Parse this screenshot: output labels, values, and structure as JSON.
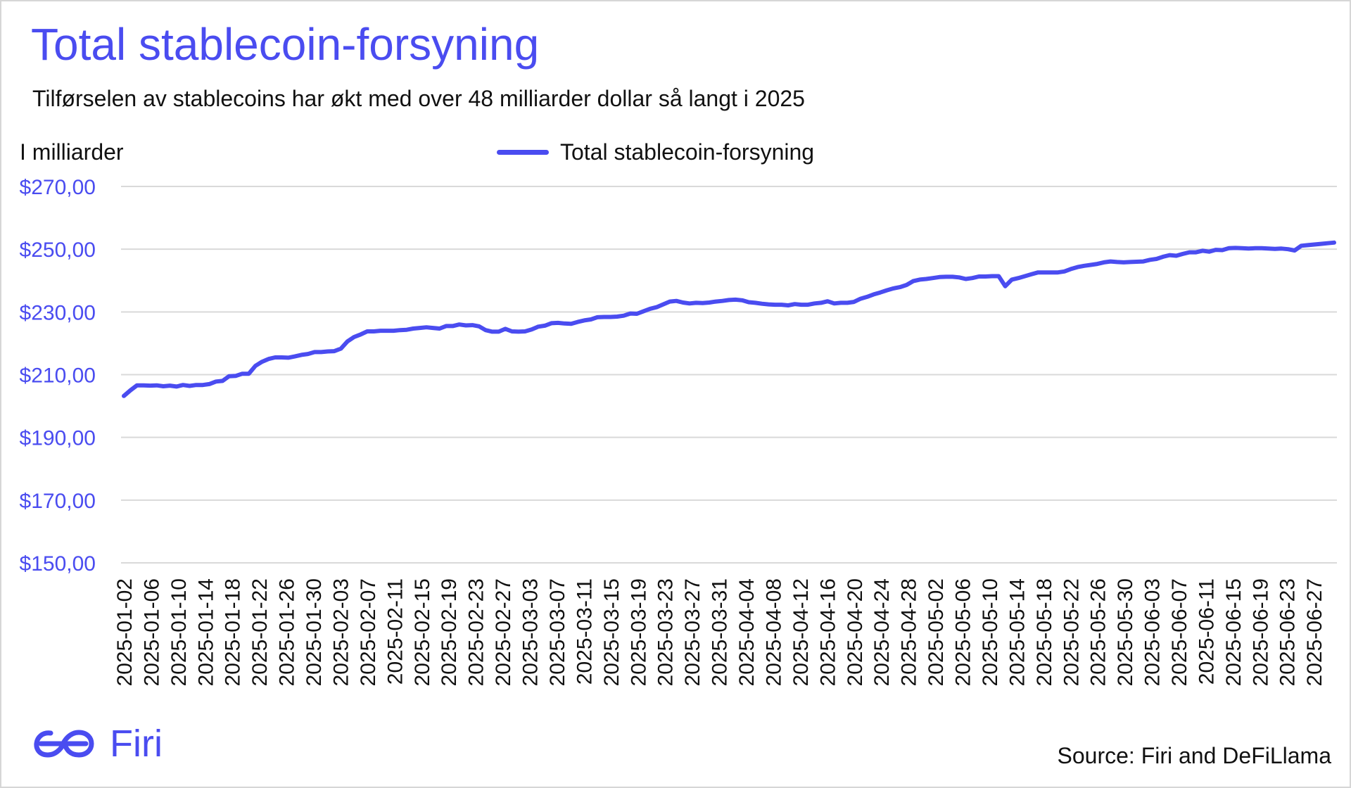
{
  "chart_data": {
    "type": "line",
    "title": "Total stablecoin-forsyning",
    "subtitle": "Tilførselen av stablecoins har økt med over 48 milliarder dollar så langt i 2025",
    "ylabel": "I milliarder",
    "xlabel": "",
    "ylim": [
      150,
      270
    ],
    "yticks": [
      150,
      170,
      190,
      210,
      230,
      250,
      270
    ],
    "ytick_labels": [
      "$150,00",
      "$170,00",
      "$190,00",
      "$210,00",
      "$230,00",
      "$250,00",
      "$270,00"
    ],
    "grid": "horizontal",
    "legend_position": "top-center",
    "color": "#4a4cf0",
    "x_start": "2025-01-02",
    "x_end": "2025-06-30",
    "xtick_labels": [
      "2025-01-02",
      "2025-01-06",
      "2025-01-10",
      "2025-01-14",
      "2025-01-18",
      "2025-01-22",
      "2025-01-26",
      "2025-01-30",
      "2025-02-03",
      "2025-02-07",
      "2025-02-11",
      "2025-02-15",
      "2025-02-19",
      "2025-02-23",
      "2025-02-27",
      "2025-03-03",
      "2025-03-07",
      "2025-03-11",
      "2025-03-15",
      "2025-03-19",
      "2025-03-23",
      "2025-03-27",
      "2025-03-31",
      "2025-04-04",
      "2025-04-08",
      "2025-04-12",
      "2025-04-16",
      "2025-04-20",
      "2025-04-24",
      "2025-04-28",
      "2025-05-02",
      "2025-05-06",
      "2025-05-10",
      "2025-05-14",
      "2025-05-18",
      "2025-05-22",
      "2025-05-26",
      "2025-05-30",
      "2025-06-03",
      "2025-06-07",
      "2025-06-11",
      "2025-06-15",
      "2025-06-19",
      "2025-06-23",
      "2025-06-27"
    ],
    "series": [
      {
        "name": "Total stablecoin-forsyning",
        "values": [
          203.2,
          205.0,
          206.6,
          206.6,
          206.5,
          206.6,
          206.3,
          206.5,
          206.2,
          206.7,
          206.4,
          206.7,
          206.7,
          207.0,
          207.8,
          208.0,
          209.5,
          209.6,
          210.3,
          210.3,
          212.8,
          214.1,
          215.0,
          215.5,
          215.5,
          215.4,
          215.8,
          216.3,
          216.6,
          217.2,
          217.2,
          217.4,
          217.5,
          218.3,
          220.6,
          222.0,
          222.8,
          223.8,
          223.8,
          224.0,
          224.0,
          224.0,
          224.2,
          224.3,
          224.7,
          224.9,
          225.1,
          224.9,
          224.7,
          225.5,
          225.5,
          226.0,
          225.7,
          225.8,
          225.4,
          224.2,
          223.7,
          223.7,
          224.6,
          223.8,
          223.7,
          223.8,
          224.4,
          225.3,
          225.6,
          226.4,
          226.5,
          226.3,
          226.2,
          226.8,
          227.3,
          227.6,
          228.3,
          228.4,
          228.4,
          228.5,
          228.8,
          229.5,
          229.4,
          230.2,
          231.0,
          231.5,
          232.4,
          233.3,
          233.5,
          233.0,
          232.7,
          232.9,
          232.8,
          233.0,
          233.3,
          233.5,
          233.8,
          233.9,
          233.7,
          233.1,
          232.9,
          232.6,
          232.4,
          232.3,
          232.3,
          232.1,
          232.5,
          232.3,
          232.3,
          232.7,
          232.9,
          233.4,
          232.7,
          232.9,
          232.9,
          233.2,
          234.2,
          234.8,
          235.6,
          236.2,
          236.9,
          237.5,
          237.9,
          238.6,
          239.8,
          240.3,
          240.5,
          240.8,
          241.1,
          241.2,
          241.2,
          241.0,
          240.5,
          240.8,
          241.3,
          241.3,
          241.4,
          241.4,
          238.2,
          240.3,
          240.8,
          241.4,
          242.0,
          242.6,
          242.6,
          242.6,
          242.6,
          242.9,
          243.7,
          244.3,
          244.7,
          245.0,
          245.3,
          245.8,
          246.1,
          245.9,
          245.8,
          245.9,
          246.0,
          246.1,
          246.6,
          246.9,
          247.6,
          248.1,
          247.9,
          248.5,
          249.0,
          249.0,
          249.5,
          249.2,
          249.8,
          249.7,
          250.3,
          250.4,
          250.3,
          250.2,
          250.3,
          250.3,
          250.2,
          250.1,
          250.2,
          250.0,
          249.6,
          251.1,
          251.3,
          251.5,
          251.7,
          251.9,
          252.1
        ]
      }
    ]
  },
  "legend": {
    "label": "Total stablecoin-forsyning"
  },
  "branding": {
    "logo_text": "Firi",
    "logo_icon": "firi-logo-icon",
    "source": "Source: Firi and DeFiLlama"
  }
}
